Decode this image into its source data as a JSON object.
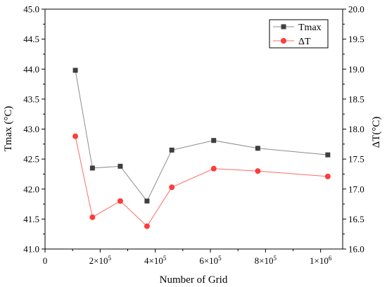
{
  "chart_data": {
    "type": "line",
    "xlabel": "Number of Grid",
    "ylabel_left": "Tmax (°C)",
    "ylabel_right": "ΔT(°C)",
    "xlim": [
      0,
      1080000
    ],
    "ylim_left": [
      41.0,
      45.0
    ],
    "ylim_right": [
      16.0,
      20.0
    ],
    "x_ticks": [
      {
        "value": 0,
        "label": "0",
        "exp": ""
      },
      {
        "value": 200000,
        "label": "2×10",
        "exp": "5"
      },
      {
        "value": 400000,
        "label": "4×10",
        "exp": "5"
      },
      {
        "value": 600000,
        "label": "6×10",
        "exp": "5"
      },
      {
        "value": 800000,
        "label": "8×10",
        "exp": "5"
      },
      {
        "value": 1000000,
        "label": "1×10",
        "exp": "6"
      }
    ],
    "y_ticks_left": [
      "41.0",
      "41.5",
      "42.0",
      "42.5",
      "43.0",
      "43.5",
      "44.0",
      "44.5",
      "45.0"
    ],
    "y_ticks_right": [
      "16.0",
      "16.5",
      "17.0",
      "17.5",
      "18.0",
      "18.5",
      "19.0",
      "19.5",
      "20.0"
    ],
    "x": [
      110000,
      172000,
      273000,
      370000,
      460000,
      612000,
      772000,
      1026000
    ],
    "series": [
      {
        "name": "Tmax",
        "axis": "left",
        "marker": "square",
        "marker_color": "#3f3f3f",
        "line_color": "#8c8c8c",
        "values": [
          43.98,
          42.35,
          42.38,
          41.8,
          42.65,
          42.81,
          42.68,
          42.57
        ]
      },
      {
        "name": "ΔT",
        "axis": "right",
        "marker": "circle",
        "marker_color": "#ff3b3b",
        "line_color": "#ff6b6b",
        "values": [
          17.88,
          16.53,
          16.8,
          16.38,
          17.03,
          17.34,
          17.3,
          17.21
        ]
      }
    ],
    "grid": false,
    "legend_position": "top-right"
  }
}
